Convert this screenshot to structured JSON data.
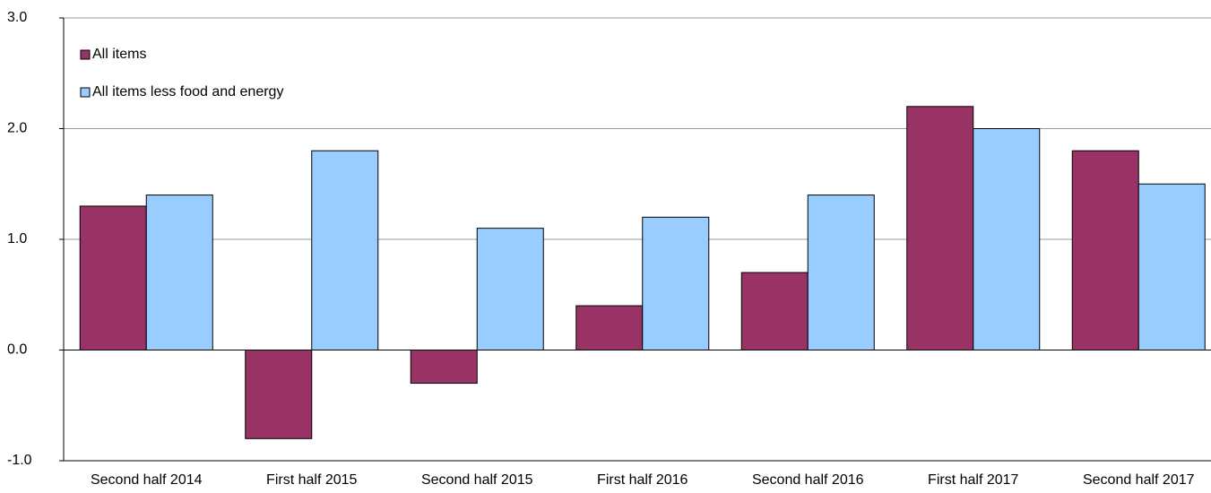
{
  "chart_data": {
    "type": "bar",
    "categories": [
      "Second half 2014",
      "First half 2015",
      "Second half 2015",
      "First half 2016",
      "Second half 2016",
      "First half 2017",
      "Second half 2017"
    ],
    "series": [
      {
        "name": "All items",
        "color": "#993366",
        "values": [
          1.3,
          -0.8,
          -0.3,
          0.4,
          0.7,
          2.2,
          1.8
        ]
      },
      {
        "name": "All items less food and energy",
        "color": "#99ccff",
        "values": [
          1.4,
          1.8,
          1.1,
          1.2,
          1.4,
          2.0,
          1.5
        ]
      }
    ],
    "ylim": [
      -1,
      3
    ],
    "yticks": [
      {
        "value": -1,
        "label": "-1.0"
      },
      {
        "value": 0,
        "label": "0.0"
      },
      {
        "value": 1,
        "label": "1.0"
      },
      {
        "value": 2,
        "label": "2.0"
      },
      {
        "value": 3,
        "label": "3.0"
      }
    ],
    "grid": true,
    "legend": "upper left"
  }
}
